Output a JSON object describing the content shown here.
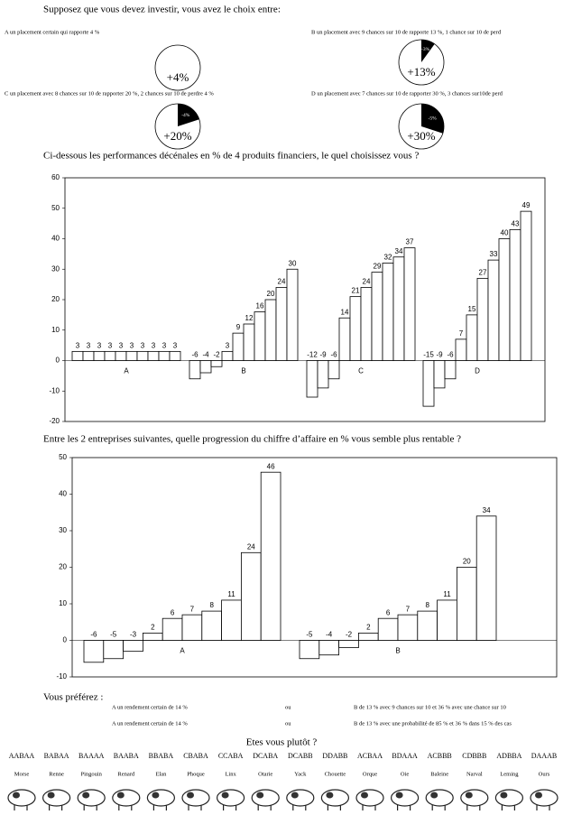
{
  "intro": "Supposez que vous devez investir, vous avez le choix entre:",
  "options": [
    {
      "label": "A un placement certain qui rapporte 4 %",
      "gain": "+4%"
    },
    {
      "label": "B un placement avec 9 chances sur 10 de rapporte 13 %, 1 chance sur 10 de perd",
      "gain": "+13%",
      "loss": "-3%",
      "loss_share": 10
    },
    {
      "label": "C un placement avec 8 chances sur 10 de rapporter 20 %, 2 chances sur 10 de perdre 4 %",
      "gain": "+20%",
      "loss": "-4%",
      "loss_share": 20
    },
    {
      "label": "D un placement avec 7 chances sur 10 de rapporter 30 %, 3 chances sur10de perd",
      "gain": "+30%",
      "loss": "-5%",
      "loss_share": 30
    }
  ],
  "chart_data": [
    {
      "type": "bar",
      "title": "Ci-dessous les performances décénales en % de 4 produits financiers, le quel choisissez vous ?",
      "color": "#ffffff",
      "ylim": [
        -20,
        60
      ],
      "yticks": [
        -20,
        -10,
        0,
        10,
        20,
        30,
        40,
        50,
        60
      ],
      "groups": [
        {
          "name": "A",
          "values": [
            3,
            3,
            3,
            3,
            3,
            3,
            3,
            3,
            3,
            3
          ]
        },
        {
          "name": "B",
          "values": [
            -6,
            -4,
            -2,
            3,
            9,
            12,
            16,
            20,
            24,
            30
          ]
        },
        {
          "name": "C",
          "values": [
            -12,
            -9,
            -6,
            14,
            21,
            24,
            29,
            32,
            34,
            37
          ]
        },
        {
          "name": "D",
          "values": [
            -15,
            -9,
            -6,
            7,
            15,
            27,
            33,
            40,
            43,
            49
          ]
        }
      ]
    },
    {
      "type": "bar",
      "title": "Entre les 2 entreprises suivantes, quelle progression du chiffre d’affaire en % vous semble plus rentable ?",
      "color": "#ffffff",
      "ylim": [
        -10,
        50
      ],
      "yticks": [
        -10,
        0,
        10,
        20,
        30,
        40,
        50
      ],
      "groups": [
        {
          "name": "A",
          "values": [
            -6,
            -5,
            -3,
            2,
            6,
            7,
            8,
            11,
            24,
            46
          ]
        },
        {
          "name": "B",
          "values": [
            -5,
            -4,
            -2,
            2,
            6,
            7,
            8,
            11,
            20,
            34
          ]
        }
      ]
    }
  ],
  "preference": {
    "title": "Vous préférez :",
    "rows": [
      {
        "a": "A un rendement certain de 14 %",
        "or": "ou",
        "b": "B de 13 % avec 9 chances sur 10 et 36 % avec une chance sur 10"
      },
      {
        "a": "A un rendement certain de 14 %",
        "or": "ou",
        "b": "B de 13 % avec une probabilité de 85 % et 36 % dans 15 % des cas"
      }
    ]
  },
  "profiles": {
    "title": "Etes vous plutôt ?",
    "items": [
      {
        "code": "AABAA",
        "animal": "Morse"
      },
      {
        "code": "BABAA",
        "animal": "Renne"
      },
      {
        "code": "BAAAA",
        "animal": "Pingouin"
      },
      {
        "code": "BAABA",
        "animal": "Renard"
      },
      {
        "code": "BBABA",
        "animal": "Elan"
      },
      {
        "code": "CBABA",
        "animal": "Phoque"
      },
      {
        "code": "CCABA",
        "animal": "Linx"
      },
      {
        "code": "DCABA",
        "animal": "Otarie"
      },
      {
        "code": "DCABB",
        "animal": "Yack"
      },
      {
        "code": "DDABB",
        "animal": "Chouette"
      },
      {
        "code": "ACBAA",
        "animal": "Orque"
      },
      {
        "code": "BDAAA",
        "animal": "Oie"
      },
      {
        "code": "ACBBB",
        "animal": "Baleine"
      },
      {
        "code": "CDBBB",
        "animal": "Narval"
      },
      {
        "code": "ADBBA",
        "animal": "Leming"
      },
      {
        "code": "DAAAB",
        "animal": "Ours"
      }
    ]
  }
}
